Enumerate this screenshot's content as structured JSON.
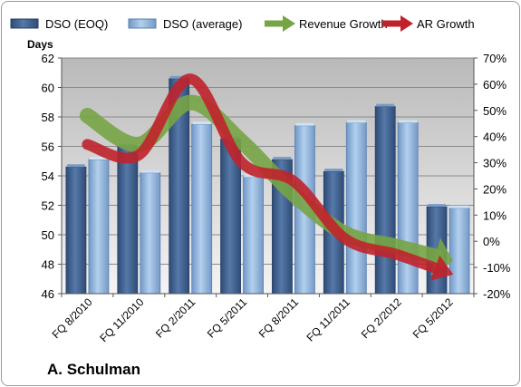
{
  "company": "A. Schulman",
  "chart_data": {
    "type": "bar",
    "y_axis_title": "Days",
    "categories": [
      "FQ 8/2010",
      "FQ 11/2010",
      "FQ 2/2011",
      "FQ 5/2011",
      "FQ 8/2011",
      "FQ 11/2011",
      "FQ 2/2012",
      "FQ 5/2012"
    ],
    "series": [
      {
        "name": "DSO (EOQ)",
        "kind": "bar",
        "axis": "left",
        "color": "#3e5f8f",
        "values": [
          54.6,
          56.0,
          60.6,
          56.5,
          55.1,
          54.3,
          58.7,
          51.9
        ]
      },
      {
        "name": "DSO (average)",
        "kind": "bar",
        "axis": "left",
        "color": "#8fb4dc",
        "values": [
          55.1,
          54.2,
          57.5,
          53.9,
          57.4,
          57.6,
          57.6,
          51.8
        ]
      },
      {
        "name": "Revenue Growth",
        "kind": "arrow-line",
        "axis": "right",
        "color": "#77a445",
        "values": [
          0.48,
          0.37,
          0.53,
          0.38,
          0.18,
          0.03,
          -0.02,
          -0.07
        ]
      },
      {
        "name": "AR Growth",
        "kind": "arrow-line",
        "axis": "right",
        "color": "#c0222b",
        "values": [
          0.37,
          0.33,
          0.62,
          0.3,
          0.23,
          0.01,
          -0.05,
          -0.12
        ]
      }
    ],
    "y_left": {
      "min": 46,
      "max": 62,
      "step": 2,
      "ticks": [
        "46",
        "48",
        "50",
        "52",
        "54",
        "56",
        "58",
        "60",
        "62"
      ]
    },
    "y_right": {
      "min": -0.2,
      "max": 0.7,
      "step": 0.1,
      "ticks": [
        "-20%",
        "-10%",
        "0%",
        "10%",
        "20%",
        "30%",
        "40%",
        "50%",
        "60%",
        "70%"
      ]
    },
    "legend_position": "top",
    "grid": true
  }
}
